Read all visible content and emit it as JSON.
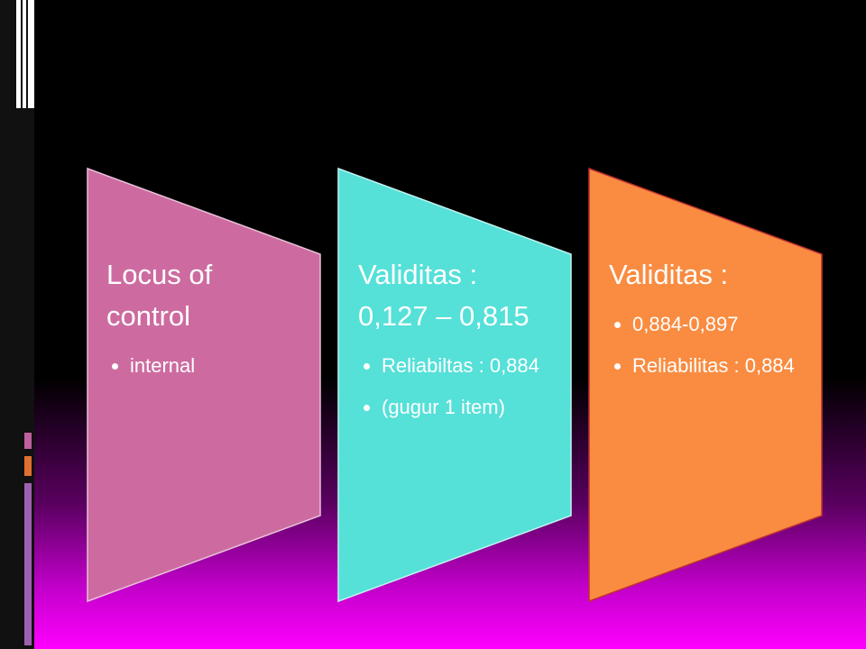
{
  "nodes": [
    {
      "title": "Locus of control",
      "bullets": [
        "internal"
      ]
    },
    {
      "title": "Validitas : 0,127 – 0,815",
      "bullets": [
        "Reliabiltas : 0,884",
        "(gugur 1 item)"
      ]
    },
    {
      "title": "Validitas :",
      "bullets": [
        "0,884-0,897",
        "Reliabilitas : 0,884"
      ]
    }
  ]
}
